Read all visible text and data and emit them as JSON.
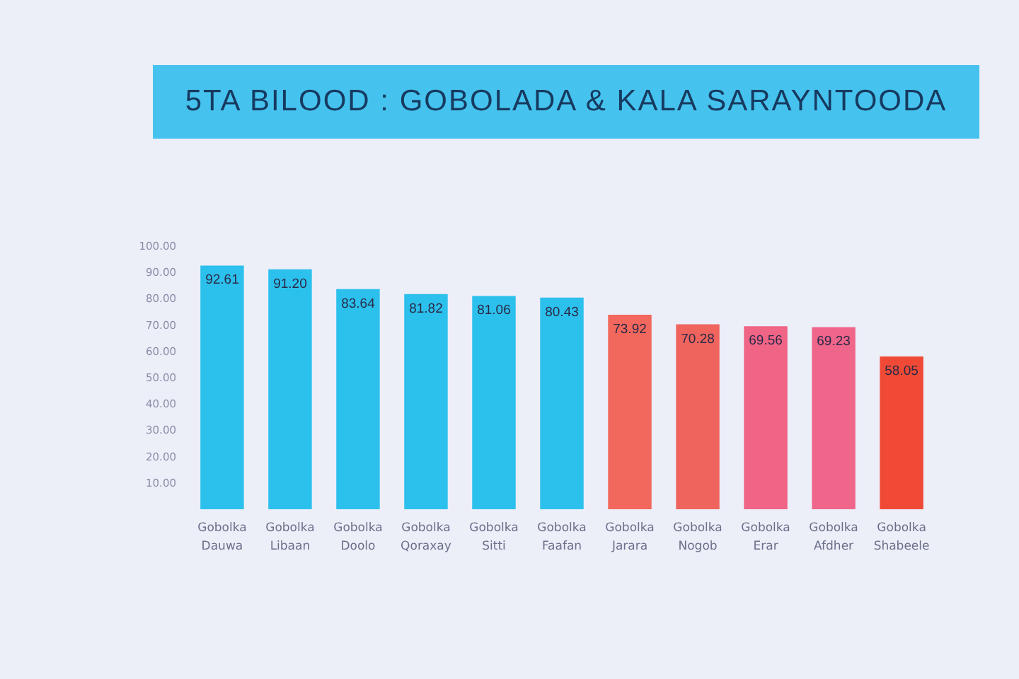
{
  "chart_data": {
    "type": "bar",
    "title": "5TA BILOOD : GOBOLADA & KALA SARAYNTOODA",
    "categories": [
      "Gobolka Dauwa",
      "Gobolka Libaan",
      "Gobolka Doolo",
      "Gobolka Qoraxay",
      "Gobolka Sitti",
      "Gobolka Faafan",
      "Gobolka Jarara",
      "Gobolka Nogob",
      "Gobolka Erar",
      "Gobolka Afdher",
      "Gobolka Shabeele"
    ],
    "values": [
      92.61,
      91.2,
      83.64,
      81.82,
      81.06,
      80.43,
      73.92,
      70.28,
      69.56,
      69.23,
      58.05
    ],
    "value_labels": [
      "92.61",
      "91.20",
      "83.64",
      "81.82",
      "81.06",
      "80.43",
      "73.92",
      "70.28",
      "69.56",
      "69.23",
      "58.05"
    ],
    "colors": [
      "#2cc0ec",
      "#2cc0ec",
      "#2cc0ec",
      "#2cc0ec",
      "#2cc0ec",
      "#2cc0ec",
      "#f2685c",
      "#f0645e",
      "#f06486",
      "#f0668a",
      "#f04a36"
    ],
    "ylim": [
      0,
      100
    ],
    "yticks": [
      {
        "value": 10,
        "label": "10.00"
      },
      {
        "value": 20,
        "label": "20.00"
      },
      {
        "value": 30,
        "label": "30.00"
      },
      {
        "value": 40,
        "label": "40.00"
      },
      {
        "value": 50,
        "label": "50.00"
      },
      {
        "value": 60,
        "label": "60.00"
      },
      {
        "value": 70,
        "label": "70.00"
      },
      {
        "value": 80,
        "label": "80.00"
      },
      {
        "value": 90,
        "label": "90.00"
      },
      {
        "value": 100,
        "label": "100.00"
      }
    ],
    "grid": false,
    "legend": false
  }
}
